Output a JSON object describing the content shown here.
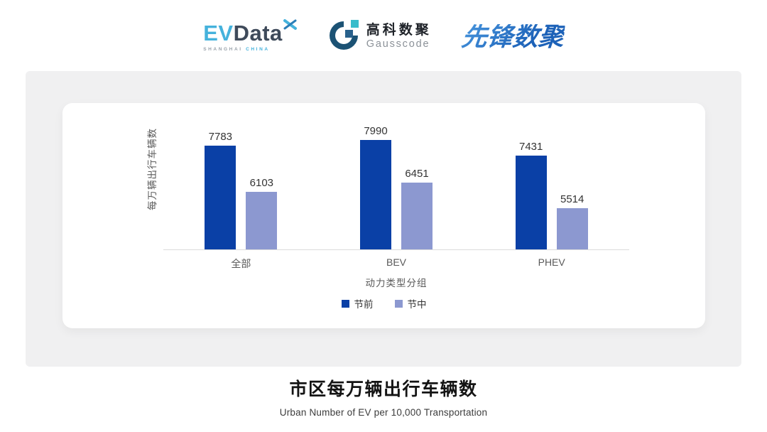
{
  "header": {
    "evdata": {
      "name_part1": "EV",
      "name_part2": "Data",
      "sub_left": "SHANGHAI",
      "sub_right": "CHINA",
      "accent_color": "#45b2dc",
      "dark_color": "#3e4a5a"
    },
    "gausscode": {
      "cn_name": "高科数聚",
      "en_name": "Gausscode",
      "icon_dark_color": "#1b5274",
      "icon_accent_color": "#38bccb"
    },
    "xianfeng": {
      "name": "先锋数聚",
      "color": "#2a7ccc"
    }
  },
  "chart_data": {
    "type": "bar",
    "title": "市区每万辆出行车辆数",
    "subtitle": "Urban Number of EV per 10,000 Transportation",
    "categories": [
      "全部",
      "BEV",
      "PHEV"
    ],
    "series": [
      {
        "name": "节前",
        "color": "#0a40a6",
        "values": [
          7783,
          7990,
          7431
        ]
      },
      {
        "name": "节中",
        "color": "#8c98d0",
        "values": [
          6103,
          6451,
          5514
        ]
      }
    ],
    "xlabel": "动力类型分组",
    "ylabel": "每万辆出行车辆数",
    "ylim": [
      4000,
      8800
    ],
    "grid": false,
    "legend_position": "bottom",
    "value_labels": true,
    "axis_line_color": "#dcdcdc"
  }
}
